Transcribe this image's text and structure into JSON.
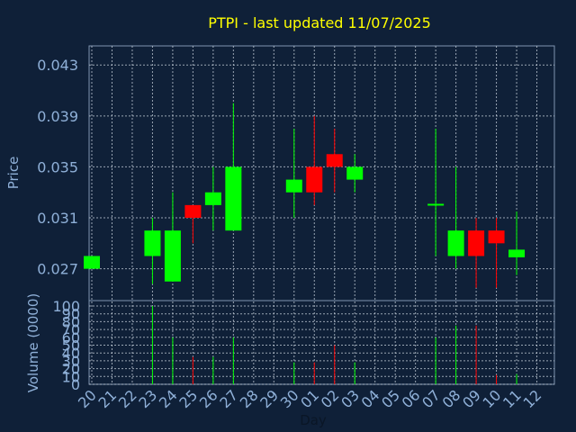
{
  "chart_data": {
    "type": "candlestick",
    "title": "PTPI - last updated 11/07/2025",
    "xlabel": "Day",
    "ylabel": "Price",
    "volume_label": "Volume (0000)",
    "x_ticks": [
      "20",
      "21",
      "22",
      "23",
      "24",
      "25",
      "26",
      "27",
      "28",
      "29",
      "30",
      "01",
      "02",
      "03",
      "04",
      "05",
      "06",
      "07",
      "08",
      "09",
      "10",
      "11",
      "12"
    ],
    "y_ticks": [
      "0.043",
      "0.039",
      "0.035",
      "0.031",
      "0.027"
    ],
    "y_tick_values": [
      0.043,
      0.039,
      0.035,
      0.031,
      0.027
    ],
    "ylim": [
      0.0245,
      0.0445
    ],
    "volume_ticks": [
      "100",
      "90",
      "80",
      "70",
      "60",
      "50",
      "40",
      "30",
      "20",
      "10",
      "0"
    ],
    "volume_tick_values": [
      100,
      90,
      80,
      70,
      60,
      50,
      40,
      30,
      20,
      10,
      0
    ],
    "volume_ylim": [
      0,
      100
    ],
    "grid": true,
    "colors": {
      "up": "#00ff00",
      "down": "#ff0000",
      "background": "#0f2038",
      "plot": "#0f2038",
      "title": "#ffff00",
      "text": "#8fb0d8"
    },
    "candles": [
      {
        "day": "20",
        "open": 0.027,
        "close": 0.028,
        "high": 0.028,
        "low": 0.027,
        "volume": 0
      },
      {
        "day": "23",
        "open": 0.028,
        "close": 0.03,
        "high": 0.031,
        "low": 0.0258,
        "volume": 100
      },
      {
        "day": "24",
        "open": 0.026,
        "close": 0.03,
        "high": 0.033,
        "low": 0.026,
        "volume": 60
      },
      {
        "day": "25",
        "open": 0.032,
        "close": 0.031,
        "high": 0.032,
        "low": 0.029,
        "volume": 35
      },
      {
        "day": "26",
        "open": 0.032,
        "close": 0.033,
        "high": 0.035,
        "low": 0.03,
        "volume": 35
      },
      {
        "day": "27",
        "open": 0.03,
        "close": 0.035,
        "high": 0.04,
        "low": 0.03,
        "volume": 60
      },
      {
        "day": "30",
        "open": 0.033,
        "close": 0.034,
        "high": 0.038,
        "low": 0.031,
        "volume": 28
      },
      {
        "day": "01",
        "open": 0.035,
        "close": 0.033,
        "high": 0.039,
        "low": 0.032,
        "volume": 28
      },
      {
        "day": "02",
        "open": 0.036,
        "close": 0.035,
        "high": 0.038,
        "low": 0.033,
        "volume": 50
      },
      {
        "day": "03",
        "open": 0.034,
        "close": 0.035,
        "high": 0.036,
        "low": 0.033,
        "volume": 28
      },
      {
        "day": "07",
        "open": 0.032,
        "close": 0.0321,
        "high": 0.038,
        "low": 0.028,
        "volume": 60
      },
      {
        "day": "08",
        "open": 0.028,
        "close": 0.03,
        "high": 0.035,
        "low": 0.027,
        "volume": 75
      },
      {
        "day": "09",
        "open": 0.03,
        "close": 0.028,
        "high": 0.031,
        "low": 0.0255,
        "volume": 75
      },
      {
        "day": "10",
        "open": 0.03,
        "close": 0.029,
        "high": 0.031,
        "low": 0.0255,
        "volume": 12
      },
      {
        "day": "11",
        "open": 0.0279,
        "close": 0.0285,
        "high": 0.0315,
        "low": 0.0265,
        "volume": 13
      }
    ]
  }
}
